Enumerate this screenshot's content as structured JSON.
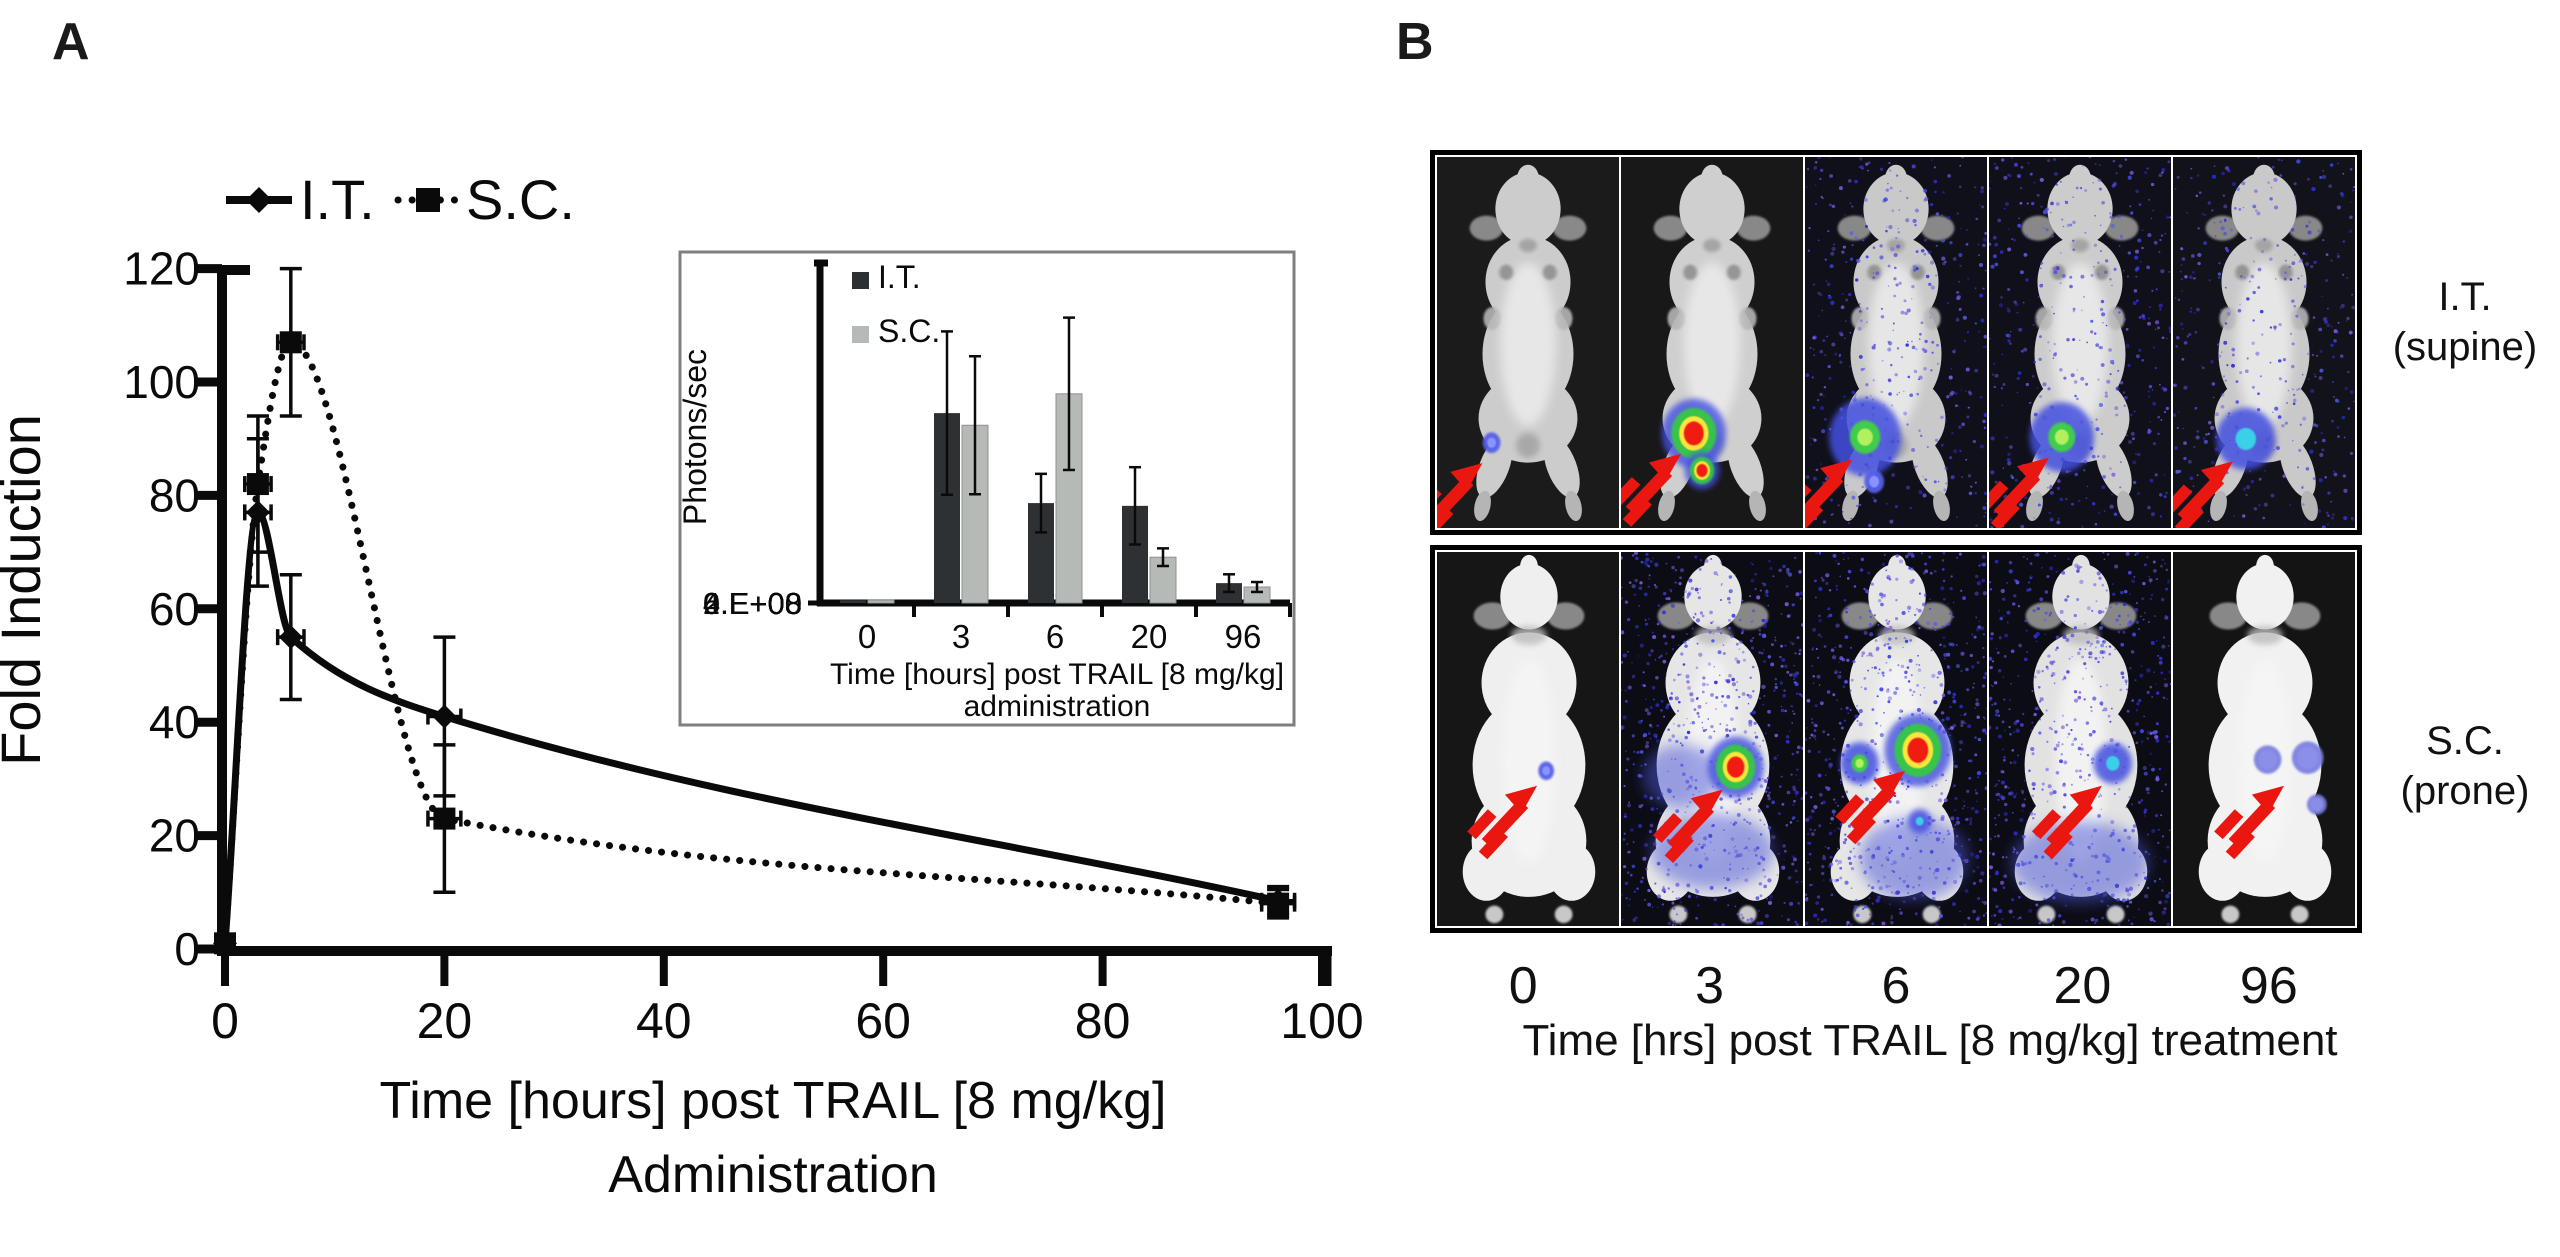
{
  "figure": {
    "panel_a_label": "A",
    "panel_b_label": "B"
  },
  "chart_data": [
    {
      "id": "main_line_chart",
      "type": "line",
      "ylabel": "Fold Induction",
      "xlabel_line1": "Time [hours] post TRAIL [8 mg/kg]",
      "xlabel_line2": "Administration",
      "xlim": [
        0,
        100
      ],
      "ylim": [
        0,
        120
      ],
      "xticks": [
        0,
        20,
        40,
        60,
        80,
        100
      ],
      "yticks": [
        0,
        20,
        40,
        60,
        80,
        100,
        120
      ],
      "grid": false,
      "legend_position": "top",
      "series": [
        {
          "name": "I.T.",
          "marker": "diamond",
          "line": "solid",
          "x": [
            0,
            3,
            6,
            20,
            96
          ],
          "y": [
            1,
            77,
            55,
            41,
            8.5
          ],
          "yerr": [
            0,
            13,
            11,
            14,
            2.5
          ],
          "xerr": [
            0,
            1.2,
            1.2,
            1.5,
            1.5
          ]
        },
        {
          "name": "S.C.",
          "marker": "square",
          "line": "dotted",
          "x": [
            0,
            3,
            6,
            20,
            96
          ],
          "y": [
            1,
            82,
            107,
            23,
            8
          ],
          "yerr": [
            0,
            12,
            13,
            13,
            2.5
          ],
          "xerr": [
            0,
            1.2,
            1.2,
            1.5,
            1.5
          ]
        }
      ]
    },
    {
      "id": "inset_bar_chart",
      "type": "bar",
      "ylabel": "Photons/sec",
      "xlabel_line1": "Time [hours] post TRAIL [8 mg/kg]",
      "xlabel_line2": "administration",
      "categories": [
        "0",
        "3",
        "6",
        "20",
        "96"
      ],
      "ytick_labels": [
        "0.E+00",
        "2.E+08",
        "4.E+08",
        "6.E+08"
      ],
      "ymax": 600000000.0,
      "series": [
        {
          "name": "I.T.",
          "color": "#2e3133",
          "values": [
            5000000.0,
            344000000.0,
            181000000.0,
            176000000.0,
            36000000.0
          ],
          "err": [
            2000000.0,
            148000000.0,
            53000000.0,
            70000000.0,
            16000000.0
          ]
        },
        {
          "name": "S.C.",
          "color": "#b6bab6",
          "values": [
            5000000.0,
            322000000.0,
            379000000.0,
            83000000.0,
            29000000.0
          ],
          "err": [
            2000000.0,
            125000000.0,
            138000000.0,
            16000000.0,
            9000000.0
          ]
        }
      ]
    }
  ],
  "panel_b": {
    "time_labels": [
      "0",
      "3",
      "6",
      "20",
      "96"
    ],
    "xlabel": "Time [hrs] post TRAIL [8 mg/kg] treatment",
    "rows": [
      {
        "label_line1": "I.T.",
        "label_line2": "(supine)",
        "pose": "supine",
        "cells": [
          {
            "time": "0",
            "bg": "#1b1b1b",
            "speckle": 0,
            "mouse": "#cccccc",
            "spots": [
              {
                "type": "tiny",
                "x": 0.3,
                "y": 0.77,
                "r": 9
              }
            ],
            "arrow_tip": [
              0.25,
              0.825
            ]
          },
          {
            "time": "3",
            "bg": "#181818",
            "speckle": 0,
            "mouse": "#cfcfcf",
            "spots": [
              {
                "type": "hot",
                "x": 0.4,
                "y": 0.745,
                "r": 24
              },
              {
                "type": "hot",
                "x": 0.445,
                "y": 0.845,
                "r": 13
              }
            ],
            "arrow_tip": [
              0.33,
              0.8
            ]
          },
          {
            "time": "6",
            "bg": "#10101a",
            "speckle": 430,
            "mouse": "#c9c9c9",
            "spots": [
              {
                "type": "green",
                "x": 0.33,
                "y": 0.755,
                "r": 28
              },
              {
                "type": "tiny",
                "x": 0.38,
                "y": 0.875,
                "r": 10
              }
            ],
            "arrow_tip": [
              0.26,
              0.815
            ]
          },
          {
            "time": "20",
            "bg": "#10101a",
            "speckle": 430,
            "mouse": "#cccccc",
            "spots": [
              {
                "type": "green",
                "x": 0.4,
                "y": 0.755,
                "r": 25
              }
            ],
            "arrow_tip": [
              0.33,
              0.81
            ]
          },
          {
            "time": "96",
            "bg": "#12121b",
            "speckle": 380,
            "mouse": "#c9c9c9",
            "spots": [
              {
                "type": "cyan",
                "x": 0.4,
                "y": 0.76,
                "r": 23
              }
            ],
            "arrow_tip": [
              0.33,
              0.82
            ]
          }
        ]
      },
      {
        "label_line1": "S.C.",
        "label_line2": "(prone)",
        "pose": "prone",
        "cells": [
          {
            "time": "0",
            "bg": "#161616",
            "speckle": 0,
            "mouse": "#efefef",
            "spots": [
              {
                "type": "tiny",
                "x": 0.6,
                "y": 0.585,
                "r": 8
              }
            ],
            "arrow_tip": [
              0.55,
              0.625
            ]
          },
          {
            "time": "3",
            "bg": "#0c0c15",
            "speckle": 720,
            "mouse": "#e6e6e6",
            "diffuse": [
              {
                "x": 0.33,
                "y": 0.6,
                "rx": 0.21,
                "ry": 0.085
              },
              {
                "x": 0.5,
                "y": 0.8,
                "rx": 0.34,
                "ry": 0.1
              }
            ],
            "spots": [
              {
                "type": "hot",
                "x": 0.63,
                "y": 0.575,
                "r": 21
              }
            ],
            "arrow_tip": [
              0.56,
              0.635
            ]
          },
          {
            "time": "6",
            "bg": "#0c0c15",
            "speckle": 720,
            "mouse": "#e6e6e6",
            "diffuse": [
              {
                "x": 0.6,
                "y": 0.82,
                "rx": 0.3,
                "ry": 0.11
              }
            ],
            "spots": [
              {
                "type": "green",
                "x": 0.3,
                "y": 0.565,
                "r": 15
              },
              {
                "type": "hot",
                "x": 0.62,
                "y": 0.53,
                "r": 25
              },
              {
                "type": "cyan",
                "x": 0.63,
                "y": 0.72,
                "r": 9
              }
            ],
            "arrow_tip": [
              0.55,
              0.585
            ]
          },
          {
            "time": "20",
            "bg": "#0c0c15",
            "speckle": 660,
            "mouse": "#e2e2e2",
            "diffuse": [
              {
                "x": 0.5,
                "y": 0.83,
                "rx": 0.38,
                "ry": 0.11
              }
            ],
            "spots": [
              {
                "type": "cyan",
                "x": 0.68,
                "y": 0.565,
                "r": 15
              }
            ],
            "arrow_tip": [
              0.62,
              0.625
            ]
          },
          {
            "time": "96",
            "bg": "#141414",
            "speckle": 0,
            "mouse": "#f1f1f1",
            "spots": [
              {
                "type": "purple",
                "x": 0.52,
                "y": 0.555,
                "r": 14
              },
              {
                "type": "purple",
                "x": 0.74,
                "y": 0.55,
                "r": 16
              },
              {
                "type": "purple",
                "x": 0.79,
                "y": 0.675,
                "r": 10
              }
            ],
            "arrow_tip": [
              0.61,
              0.625
            ]
          }
        ]
      }
    ]
  }
}
